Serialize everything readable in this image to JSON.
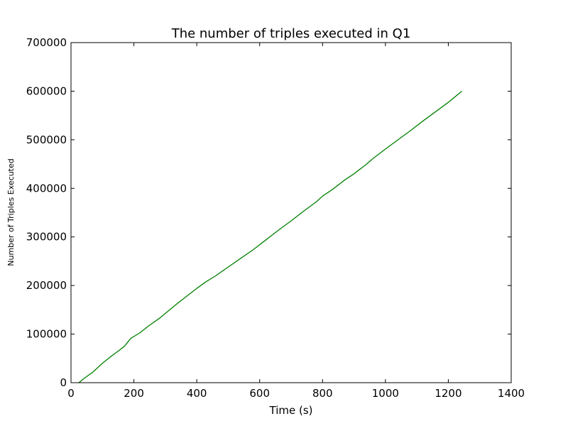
{
  "chart_data": {
    "type": "line",
    "title": "The number of triples executed in Q1",
    "xlabel": "Time (s)",
    "ylabel": "Number of Triples Executed",
    "xlim": [
      0,
      1400
    ],
    "ylim": [
      0,
      700000
    ],
    "x_ticks": [
      0,
      200,
      400,
      600,
      800,
      1000,
      1200,
      1400
    ],
    "y_ticks": [
      0,
      100000,
      200000,
      300000,
      400000,
      500000,
      600000,
      700000
    ],
    "x_tick_labels": [
      "0",
      "200",
      "400",
      "600",
      "800",
      "1000",
      "1200",
      "1400"
    ],
    "y_tick_labels": [
      "0",
      "100000",
      "200000",
      "300000",
      "400000",
      "500000",
      "600000",
      "700000"
    ],
    "grid": false,
    "legend": "none",
    "series": [
      {
        "color": "#008000",
        "x": [
          25,
          40,
          70,
          100,
          125,
          150,
          170,
          190,
          220,
          245,
          280,
          310,
          340,
          370,
          400,
          430,
          460,
          500,
          540,
          580,
          620,
          660,
          700,
          740,
          780,
          800,
          830,
          870,
          900,
          940,
          960,
          1000,
          1040,
          1080,
          1120,
          1160,
          1200,
          1243
        ],
        "y": [
          0,
          8000,
          22000,
          40000,
          53000,
          65000,
          75000,
          91000,
          103000,
          116000,
          132000,
          148000,
          164000,
          179000,
          194000,
          208000,
          220000,
          238000,
          256000,
          274000,
          294000,
          314000,
          333000,
          353000,
          372000,
          384000,
          397000,
          417000,
          430000,
          450000,
          461000,
          481000,
          500000,
          519000,
          539000,
          558000,
          577000,
          600000
        ]
      }
    ]
  }
}
